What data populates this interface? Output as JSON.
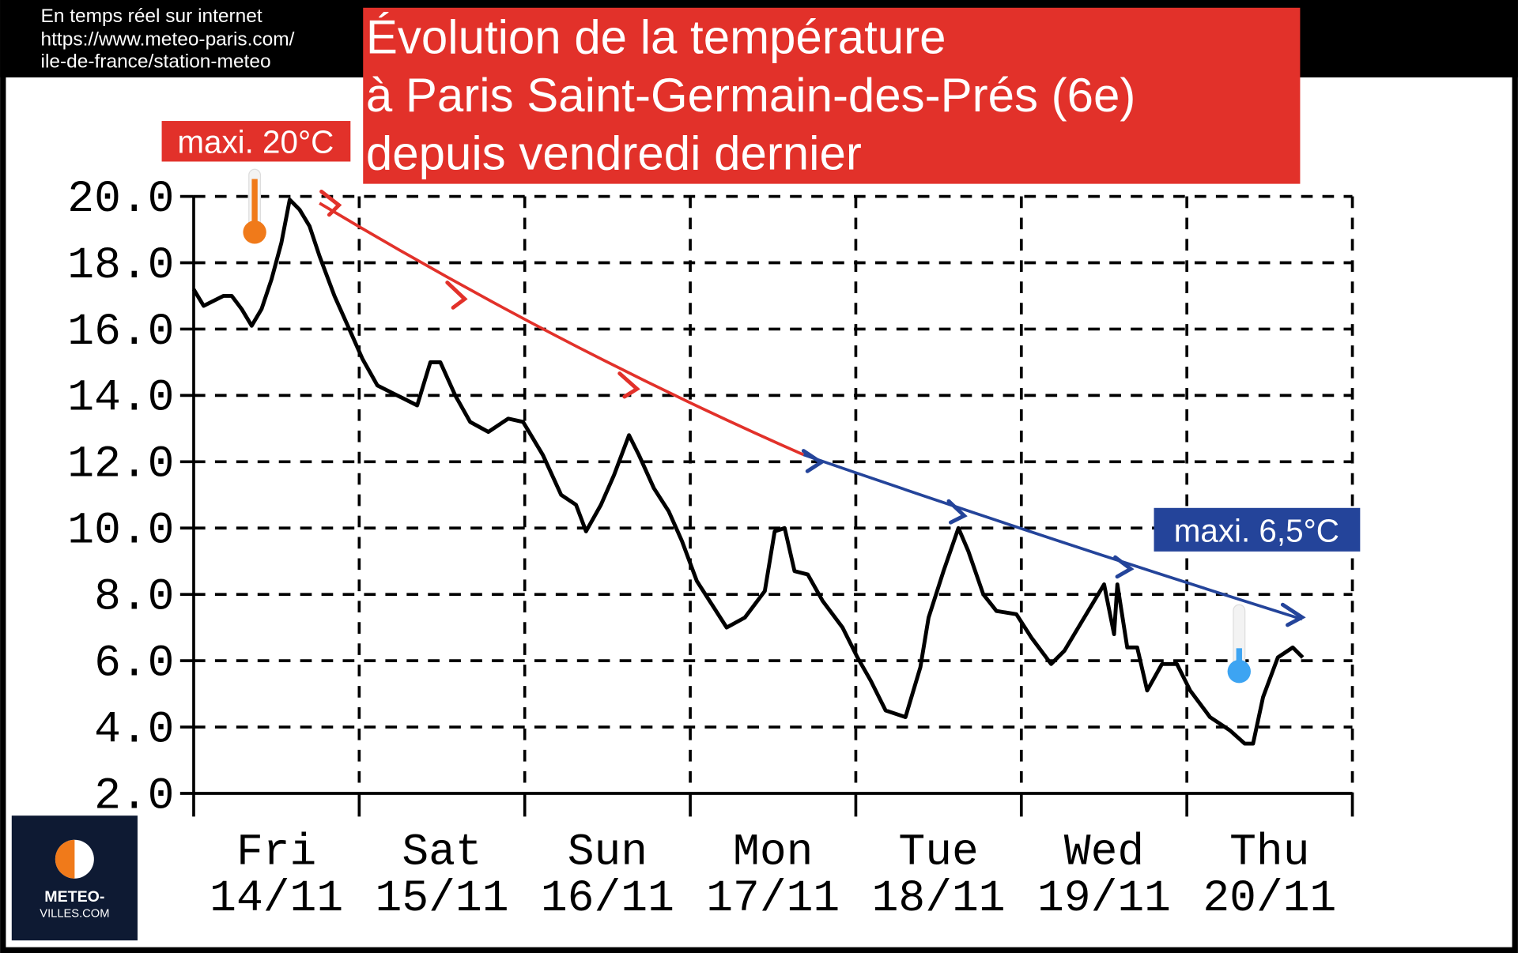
{
  "chart_data": {
    "type": "line",
    "source_lines": [
      "En temps réel sur internet",
      "https://www.meteo-paris.com/",
      "ile-de-france/station-meteo"
    ],
    "title_lines": [
      "Évolution de la température",
      "à Paris Saint-Germain-des-Prés (6e)",
      "depuis vendredi dernier"
    ],
    "annotations": [
      "maxi. 20°C",
      "maxi. 6,5°C"
    ],
    "logo": [
      "METEO-",
      "VILLES.COM"
    ],
    "categories": [
      "Fri",
      "Sat",
      "Sun",
      "Mon",
      "Tue",
      "Wed",
      "Thu"
    ],
    "dates": [
      "14/11",
      "15/11",
      "16/11",
      "17/11",
      "18/11",
      "19/11",
      "20/11"
    ],
    "x": [
      0,
      0.06,
      0.18,
      0.23,
      0.29,
      0.35,
      0.41,
      0.47,
      0.53,
      0.58,
      0.64,
      0.7,
      0.76,
      0.85,
      0.94,
      1.02,
      1.11,
      1.23,
      1.35,
      1.43,
      1.49,
      1.58,
      1.67,
      1.78,
      1.9,
      1.99,
      2.11,
      2.22,
      2.31,
      2.37,
      2.46,
      2.54,
      2.63,
      2.69,
      2.78,
      2.87,
      2.95,
      3.04,
      3.13,
      3.22,
      3.33,
      3.45,
      3.51,
      3.57,
      3.63,
      3.71,
      3.8,
      3.92,
      4.01,
      4.09,
      4.18,
      4.3,
      4.39,
      4.44,
      4.53,
      4.62,
      4.68,
      4.77,
      4.85,
      4.97,
      5.06,
      5.18,
      5.26,
      5.38,
      5.5,
      5.56,
      5.58,
      5.64,
      5.7,
      5.76,
      5.85,
      5.94,
      6.02,
      6.14,
      6.26,
      6.35,
      6.4,
      6.46,
      6.55,
      6.64,
      6.7
    ],
    "values": [
      17.2,
      16.7,
      17.0,
      17.0,
      16.6,
      16.1,
      16.6,
      17.5,
      18.6,
      19.9,
      19.6,
      19.1,
      18.2,
      17.0,
      16.0,
      15.1,
      14.3,
      14.0,
      13.7,
      15.0,
      15.0,
      14.0,
      13.2,
      12.9,
      13.3,
      13.2,
      12.2,
      11.0,
      10.7,
      9.9,
      10.7,
      11.6,
      12.8,
      12.2,
      11.2,
      10.5,
      9.6,
      8.4,
      7.7,
      7.0,
      7.3,
      8.1,
      9.9,
      10.0,
      8.7,
      8.6,
      7.8,
      7.0,
      6.1,
      5.4,
      4.5,
      4.3,
      5.8,
      7.3,
      8.7,
      10.0,
      9.3,
      8.0,
      7.5,
      7.4,
      6.7,
      5.9,
      6.3,
      7.3,
      8.3,
      6.8,
      8.3,
      6.4,
      6.4,
      5.1,
      5.9,
      5.9,
      5.1,
      4.3,
      3.9,
      3.5,
      3.5,
      4.9,
      6.1,
      6.4,
      6.1
    ],
    "color": "#000000",
    "xlim": [
      0,
      7
    ],
    "xticks": [
      0,
      1,
      2,
      3,
      4,
      5,
      6,
      7
    ],
    "ylim": [
      2,
      20
    ],
    "yticks": [
      {
        "value": 2,
        "label": "2.0"
      },
      {
        "value": 4,
        "label": "4.0"
      },
      {
        "value": 6,
        "label": "6.0"
      },
      {
        "value": 8,
        "label": "8.0"
      },
      {
        "value": 10,
        "label": "10.0"
      },
      {
        "value": 12,
        "label": "12.0"
      },
      {
        "value": 14,
        "label": "14.0"
      },
      {
        "value": 16,
        "label": "16.0"
      },
      {
        "value": 18,
        "label": "18.0"
      },
      {
        "value": 20,
        "label": "20.0"
      }
    ],
    "grid": true
  }
}
